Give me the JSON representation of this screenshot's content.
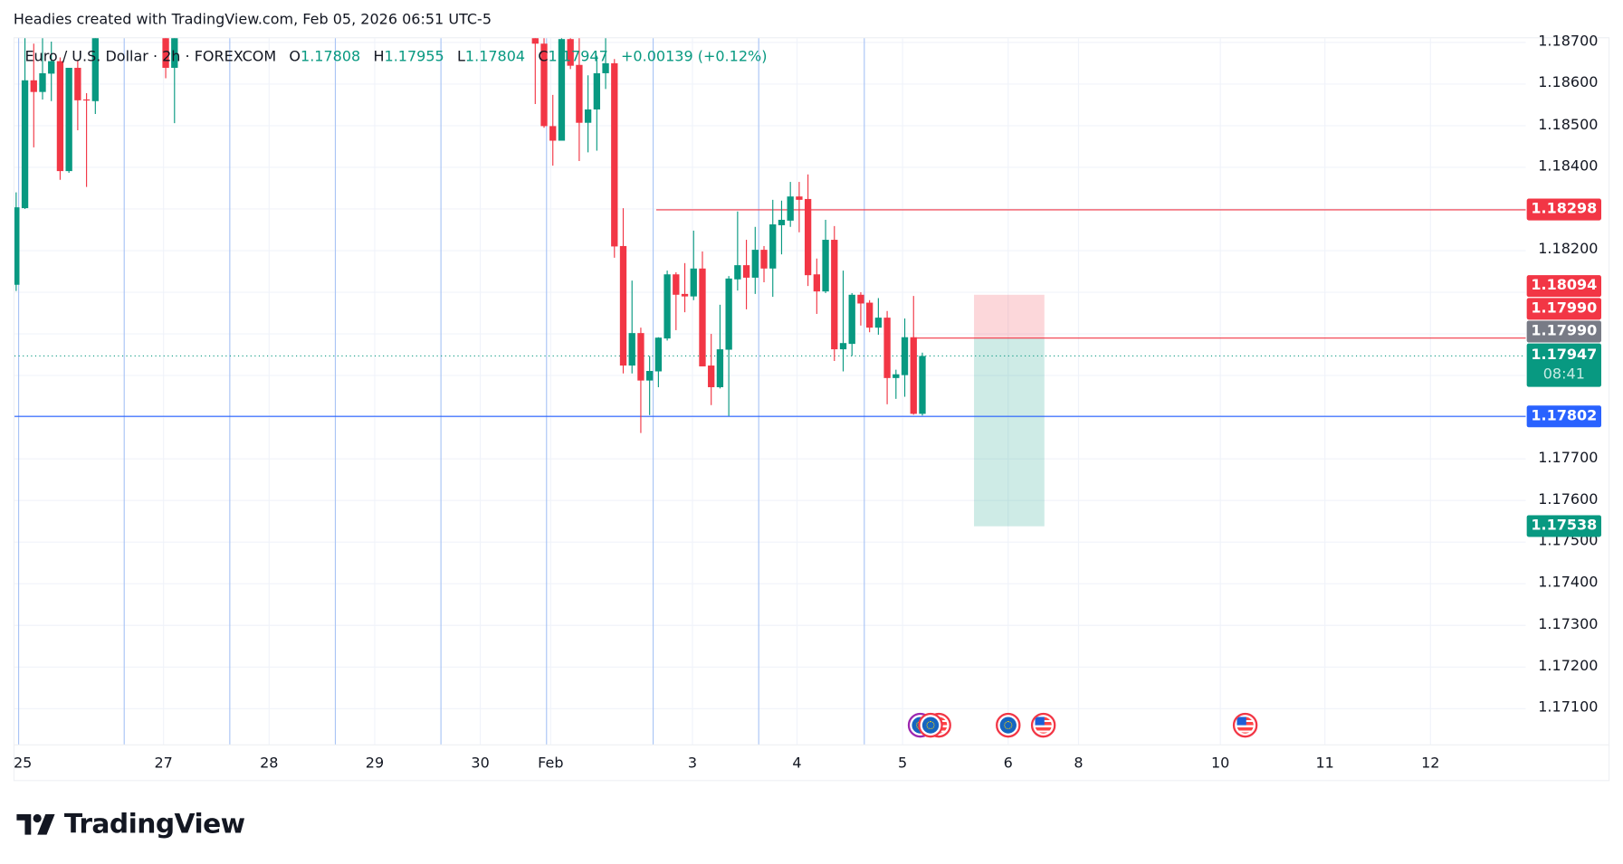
{
  "caption": "Headies created with TradingView.com, Feb 05, 2026 06:51 UTC-5",
  "legend": {
    "symbol": "Euro / U.S. Dollar · 2h · FOREXCOM",
    "o_label": "O",
    "o": "1.17808",
    "h_label": "H",
    "h": "1.17955",
    "l_label": "L",
    "l": "1.17804",
    "c_label": "C",
    "c": "1.17947",
    "change": "+0.00139 (+0.12%)"
  },
  "colors": {
    "up": "#089981",
    "down": "#f23645",
    "blue": "#2962ff",
    "gray": "#787b86"
  },
  "price_ticks": [
    "1.18700",
    "1.18600",
    "1.18500",
    "1.18400",
    "1.18200",
    "1.17700",
    "1.17600",
    "1.17500",
    "1.17400",
    "1.17300",
    "1.17200",
    "1.17100"
  ],
  "price_labels": {
    "line_red_top": "1.18298",
    "target_red": "1.18094",
    "entry_red": "1.17990",
    "entry_gray": "1.17990",
    "last": "1.17947",
    "countdown": "08:41",
    "blue_line": "1.17802",
    "target_green": "1.17538"
  },
  "time_labels": [
    "25",
    "27",
    "28",
    "29",
    "30",
    "Feb",
    "3",
    "4",
    "5",
    "6",
    "8",
    "10",
    "11",
    "12"
  ],
  "events": [
    "eu-flag",
    "eu-flag",
    "us-flag",
    "eu-flag",
    "us-flag",
    "us-flag"
  ],
  "logo": "TradingView",
  "chart_data": {
    "type": "candlestick",
    "symbol": "EURUSD",
    "interval": "2h",
    "ylim": [
      1.1704,
      1.1872
    ],
    "levels": {
      "red_line": 1.18298,
      "entry": 1.1799,
      "blue_line": 1.17802,
      "last": 1.17947,
      "stop": 1.18094,
      "target": 1.17538
    },
    "candles": [
      {
        "t": 0,
        "o": 1.18118,
        "h": 1.1834,
        "l": 1.18103,
        "c": 1.18304
      },
      {
        "t": 1,
        "o": 1.18302,
        "h": 1.1875,
        "l": 1.183,
        "c": 1.18609
      },
      {
        "t": 2,
        "o": 1.18609,
        "h": 1.18697,
        "l": 1.18448,
        "c": 1.18581
      },
      {
        "t": 3,
        "o": 1.18581,
        "h": 1.18712,
        "l": 1.18563,
        "c": 1.18626
      },
      {
        "t": 4,
        "o": 1.18625,
        "h": 1.18702,
        "l": 1.18559,
        "c": 1.18655
      },
      {
        "t": 5,
        "o": 1.18655,
        "h": 1.18664,
        "l": 1.1837,
        "c": 1.18391
      },
      {
        "t": 6,
        "o": 1.18391,
        "h": 1.18639,
        "l": 1.18387,
        "c": 1.18639
      },
      {
        "t": 7,
        "o": 1.18639,
        "h": 1.18657,
        "l": 1.18489,
        "c": 1.18561
      },
      {
        "t": 8,
        "o": 1.18563,
        "h": 1.18578,
        "l": 1.18353,
        "c": 1.18561
      },
      {
        "t": 9,
        "o": 1.18559,
        "h": 1.188,
        "l": 1.18528,
        "c": 1.18711
      },
      {
        "t": 17,
        "o": 1.188,
        "h": 1.1885,
        "l": 1.18614,
        "c": 1.18639
      },
      {
        "t": 18,
        "o": 1.18639,
        "h": 1.1885,
        "l": 1.18506,
        "c": 1.188
      },
      {
        "t": 59,
        "o": 1.18711,
        "h": 1.1875,
        "l": 1.18552,
        "c": 1.18697
      },
      {
        "t": 60,
        "o": 1.18697,
        "h": 1.1872,
        "l": 1.18495,
        "c": 1.18499
      },
      {
        "t": 61,
        "o": 1.18499,
        "h": 1.18574,
        "l": 1.18404,
        "c": 1.18464
      },
      {
        "t": 62,
        "o": 1.18464,
        "h": 1.1875,
        "l": 1.18464,
        "c": 1.18708
      },
      {
        "t": 63,
        "o": 1.18708,
        "h": 1.18712,
        "l": 1.18636,
        "c": 1.18644
      },
      {
        "t": 64,
        "o": 1.18646,
        "h": 1.18712,
        "l": 1.18415,
        "c": 1.18507
      },
      {
        "t": 65,
        "o": 1.18507,
        "h": 1.18621,
        "l": 1.18436,
        "c": 1.18539
      },
      {
        "t": 66,
        "o": 1.18539,
        "h": 1.18668,
        "l": 1.1844,
        "c": 1.18626
      },
      {
        "t": 67,
        "o": 1.18626,
        "h": 1.18712,
        "l": 1.18588,
        "c": 1.1865
      },
      {
        "t": 68,
        "o": 1.1865,
        "h": 1.1866,
        "l": 1.18183,
        "c": 1.1821
      },
      {
        "t": 69,
        "o": 1.18211,
        "h": 1.18302,
        "l": 1.17905,
        "c": 1.17924
      },
      {
        "t": 70,
        "o": 1.17924,
        "h": 1.18128,
        "l": 1.17905,
        "c": 1.18002
      },
      {
        "t": 71,
        "o": 1.18002,
        "h": 1.18015,
        "l": 1.17762,
        "c": 1.17888
      },
      {
        "t": 72,
        "o": 1.17888,
        "h": 1.17947,
        "l": 1.17805,
        "c": 1.17911
      },
      {
        "t": 73,
        "o": 1.1791,
        "h": 1.17992,
        "l": 1.17872,
        "c": 1.17991
      },
      {
        "t": 74,
        "o": 1.17989,
        "h": 1.18152,
        "l": 1.17984,
        "c": 1.18143
      },
      {
        "t": 75,
        "o": 1.18143,
        "h": 1.18148,
        "l": 1.18009,
        "c": 1.18094
      },
      {
        "t": 76,
        "o": 1.18096,
        "h": 1.1817,
        "l": 1.18052,
        "c": 1.1809
      },
      {
        "t": 77,
        "o": 1.1809,
        "h": 1.18248,
        "l": 1.18081,
        "c": 1.18157
      },
      {
        "t": 78,
        "o": 1.18157,
        "h": 1.18198,
        "l": 1.17922,
        "c": 1.17922
      },
      {
        "t": 79,
        "o": 1.17924,
        "h": 1.18,
        "l": 1.17829,
        "c": 1.17872
      },
      {
        "t": 80,
        "o": 1.17872,
        "h": 1.1807,
        "l": 1.17869,
        "c": 1.17963
      },
      {
        "t": 81,
        "o": 1.17962,
        "h": 1.18139,
        "l": 1.17803,
        "c": 1.18133
      },
      {
        "t": 82,
        "o": 1.18131,
        "h": 1.18294,
        "l": 1.18104,
        "c": 1.18165
      },
      {
        "t": 83,
        "o": 1.18165,
        "h": 1.18226,
        "l": 1.18059,
        "c": 1.18135
      },
      {
        "t": 84,
        "o": 1.18135,
        "h": 1.18257,
        "l": 1.18096,
        "c": 1.18202
      },
      {
        "t": 85,
        "o": 1.18202,
        "h": 1.18211,
        "l": 1.18124,
        "c": 1.18157
      },
      {
        "t": 86,
        "o": 1.18157,
        "h": 1.18322,
        "l": 1.18089,
        "c": 1.18263
      },
      {
        "t": 87,
        "o": 1.18261,
        "h": 1.1832,
        "l": 1.18191,
        "c": 1.18274
      },
      {
        "t": 88,
        "o": 1.18272,
        "h": 1.18365,
        "l": 1.18257,
        "c": 1.1833
      },
      {
        "t": 89,
        "o": 1.1833,
        "h": 1.18365,
        "l": 1.18244,
        "c": 1.18322
      },
      {
        "t": 90,
        "o": 1.18324,
        "h": 1.18383,
        "l": 1.18115,
        "c": 1.18141
      },
      {
        "t": 91,
        "o": 1.18143,
        "h": 1.18181,
        "l": 1.18048,
        "c": 1.18102
      },
      {
        "t": 92,
        "o": 1.18102,
        "h": 1.18274,
        "l": 1.18098,
        "c": 1.18226
      },
      {
        "t": 93,
        "o": 1.18226,
        "h": 1.18259,
        "l": 1.17935,
        "c": 1.17963
      },
      {
        "t": 94,
        "o": 1.17963,
        "h": 1.18152,
        "l": 1.1791,
        "c": 1.17978
      },
      {
        "t": 95,
        "o": 1.17976,
        "h": 1.18098,
        "l": 1.17947,
        "c": 1.18094
      },
      {
        "t": 96,
        "o": 1.18094,
        "h": 1.181,
        "l": 1.1802,
        "c": 1.18073
      },
      {
        "t": 97,
        "o": 1.18075,
        "h": 1.18081,
        "l": 1.18004,
        "c": 1.18015
      },
      {
        "t": 98,
        "o": 1.18015,
        "h": 1.18086,
        "l": 1.17998,
        "c": 1.18039
      },
      {
        "t": 99,
        "o": 1.18039,
        "h": 1.18055,
        "l": 1.17831,
        "c": 1.17894
      },
      {
        "t": 100,
        "o": 1.17894,
        "h": 1.17914,
        "l": 1.17844,
        "c": 1.17903
      },
      {
        "t": 101,
        "o": 1.17901,
        "h": 1.18037,
        "l": 1.17849,
        "c": 1.17992
      },
      {
        "t": 102,
        "o": 1.17992,
        "h": 1.18091,
        "l": 1.17806,
        "c": 1.17808
      },
      {
        "t": 103,
        "o": 1.17808,
        "h": 1.17955,
        "l": 1.17804,
        "c": 1.17947
      }
    ]
  }
}
